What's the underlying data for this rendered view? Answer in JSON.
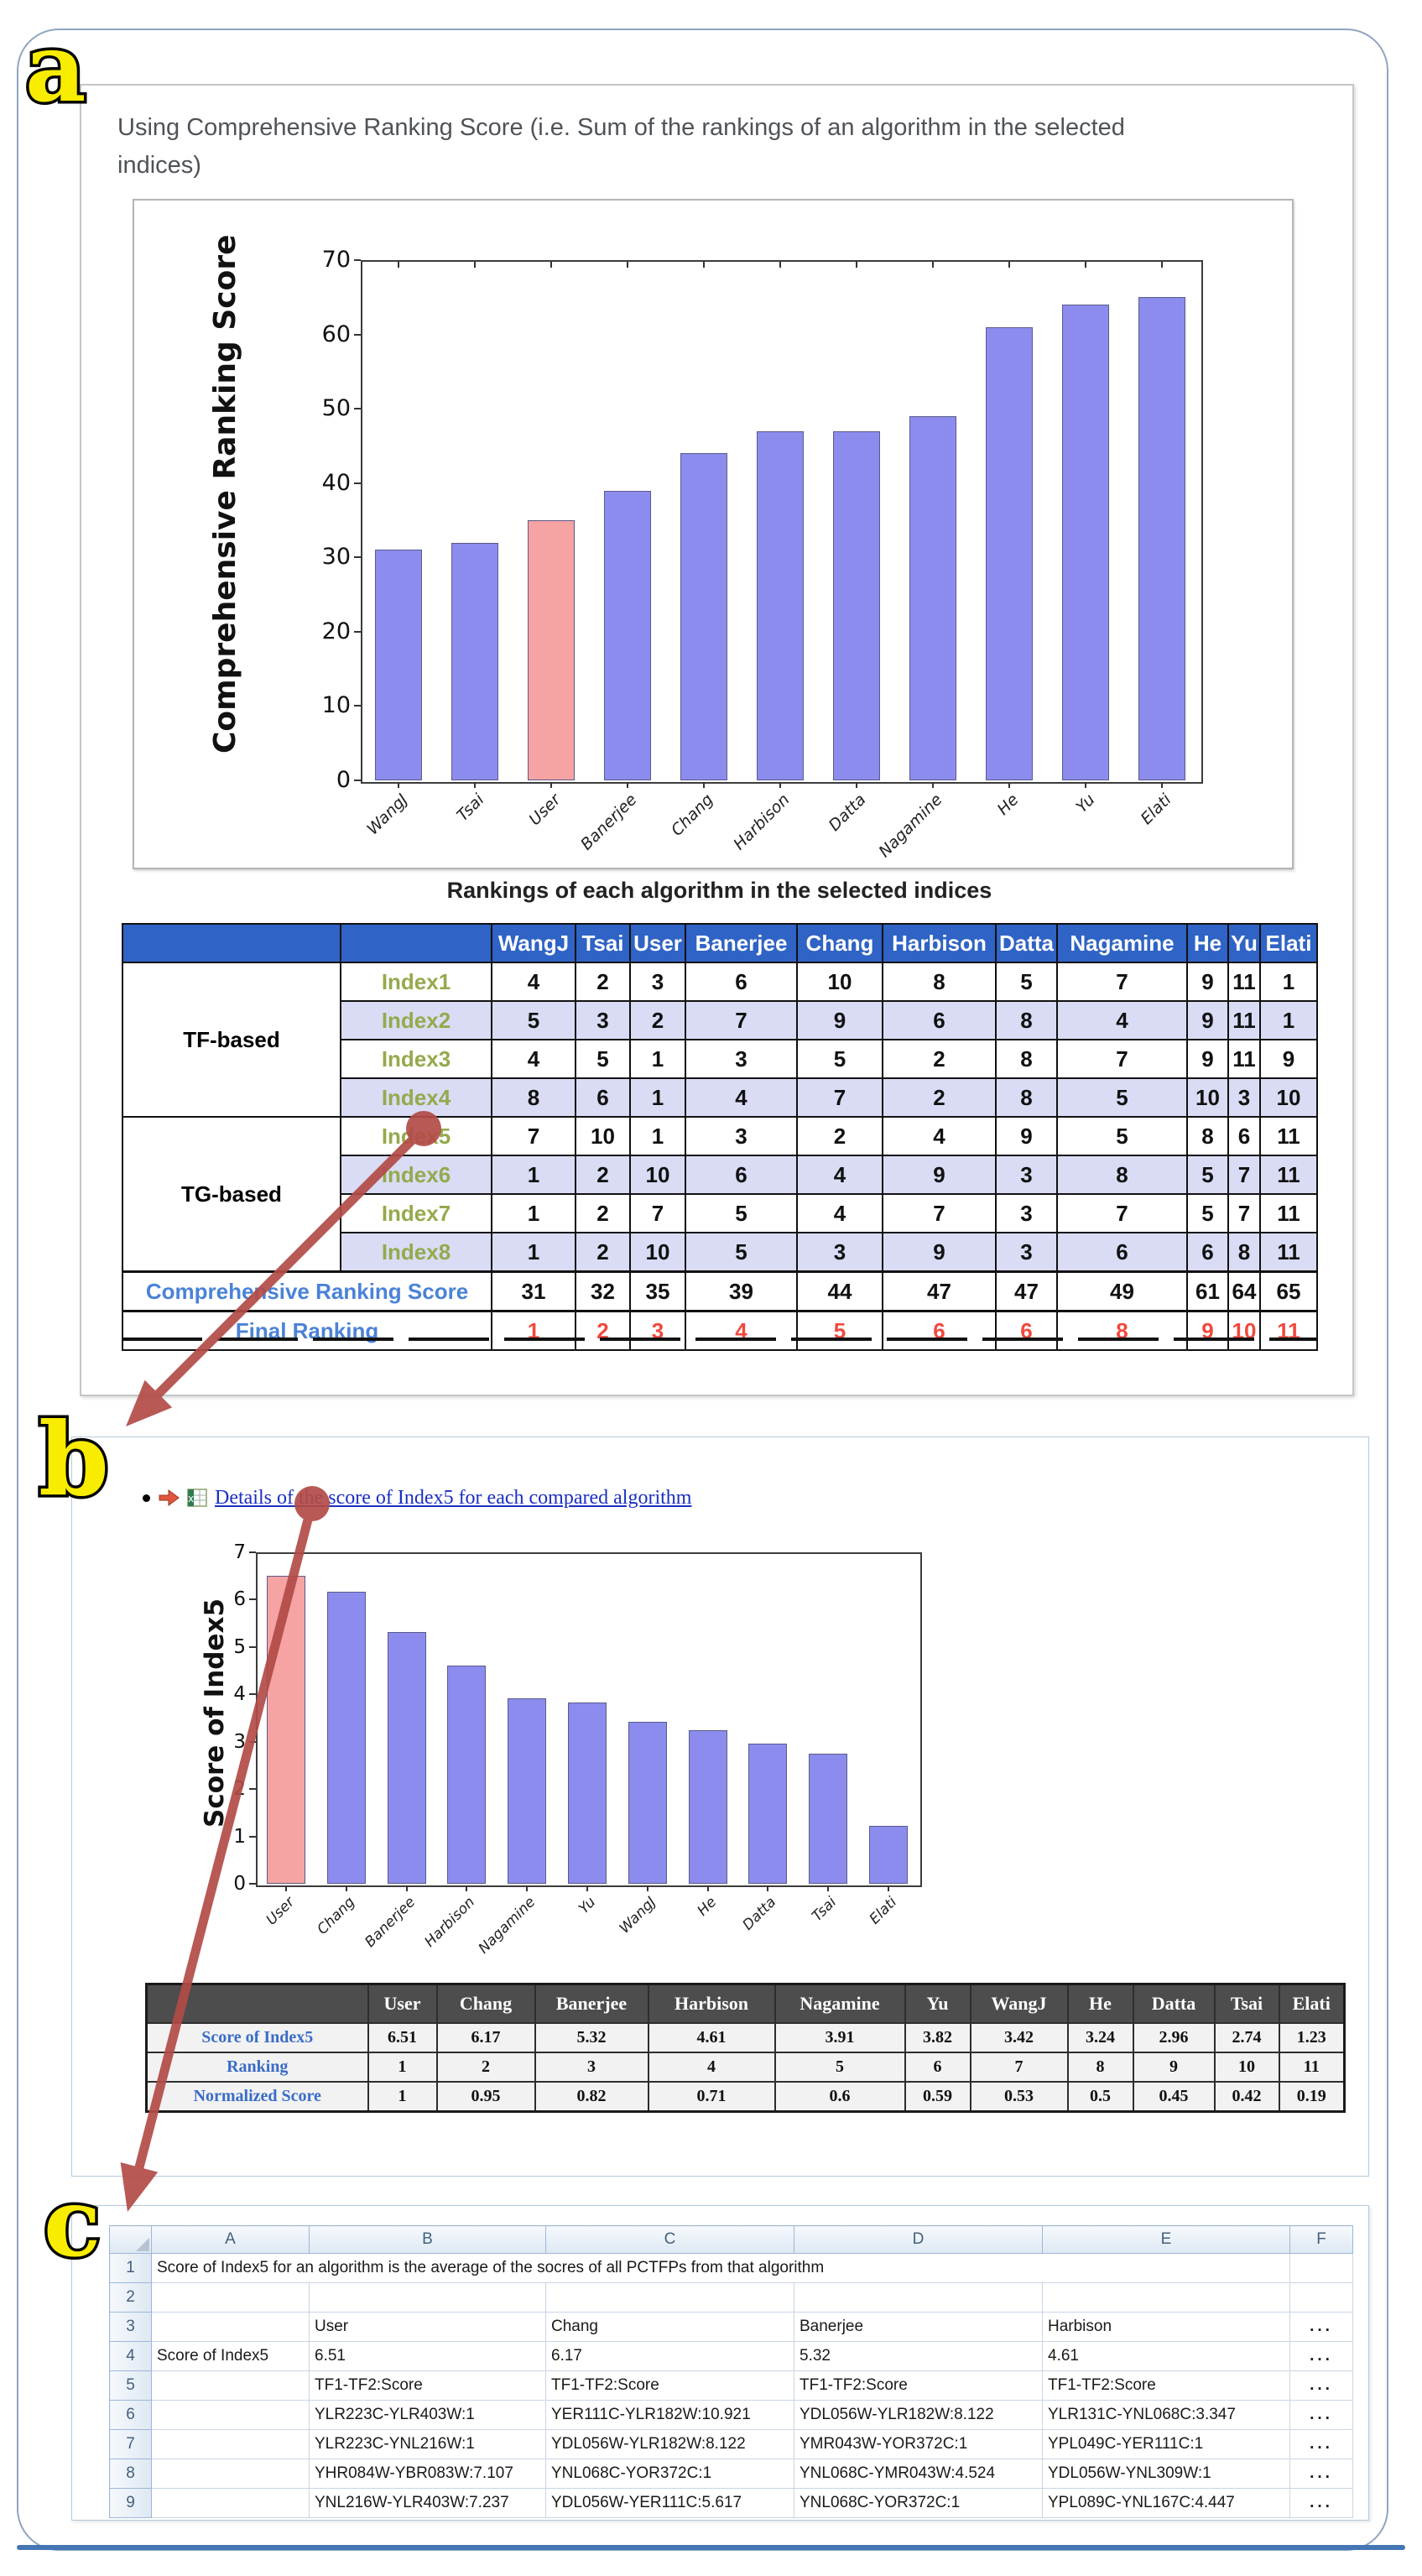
{
  "colors": {
    "bar_blue": "#8c8cee",
    "bar_pink": "#f5a3a3",
    "arrow_red": "#b24b47",
    "table_a_header_blue": "#2f63c5",
    "lavender": "#d9dcf4",
    "link_blue": "#1a2ec4",
    "summary_label_blue": "#4a82d8",
    "final_rank_red": "#f2483c",
    "index_green": "#94aa4c",
    "table_b_header_gray": "#4d4d4d"
  },
  "chart_data": [
    {
      "type": "bar",
      "title": "",
      "xlabel": "",
      "ylabel": "Comprehensive Ranking Score",
      "categories": [
        "WangJ",
        "Tsai",
        "User",
        "Banerjee",
        "Chang",
        "Harbison",
        "Datta",
        "Nagamine",
        "He",
        "Yu",
        "Elati"
      ],
      "values": [
        31,
        32,
        35,
        39,
        44,
        47,
        47,
        49,
        61,
        64,
        65
      ],
      "ylim": [
        0,
        70
      ],
      "ytick_step": 10,
      "grid": "off",
      "legend": "none",
      "highlight_category": "User"
    },
    {
      "type": "bar",
      "title": "",
      "xlabel": "",
      "ylabel": "Score of Index5",
      "categories": [
        "User",
        "Chang",
        "Banerjee",
        "Harbison",
        "Nagamine",
        "Yu",
        "WangJ",
        "He",
        "Datta",
        "Tsai",
        "Elati"
      ],
      "values": [
        6.51,
        6.17,
        5.32,
        4.61,
        3.91,
        3.82,
        3.42,
        3.24,
        2.96,
        2.74,
        1.23
      ],
      "ylim": [
        0,
        7
      ],
      "ytick_step": 1,
      "grid": "off",
      "legend": "none",
      "highlight_category": "User"
    }
  ],
  "panel_a": {
    "label": "a",
    "title": "Using Comprehensive Ranking Score (i.e. Sum of the rankings of an algorithm in the selected indices)",
    "table_title": "Rankings of each algorithm in the selected indices",
    "table": {
      "col_headers": [
        "WangJ",
        "Tsai",
        "User",
        "Banerjee",
        "Chang",
        "Harbison",
        "Datta",
        "Nagamine",
        "He",
        "Yu",
        "Elati"
      ],
      "group_labels": [
        "TF-based",
        "TG-based"
      ],
      "index_rows": [
        {
          "group": 0,
          "index": "Index1",
          "values": [
            4,
            2,
            3,
            6,
            10,
            8,
            5,
            7,
            9,
            11,
            1
          ]
        },
        {
          "group": 0,
          "index": "Index2",
          "values": [
            5,
            3,
            2,
            7,
            9,
            6,
            8,
            4,
            9,
            11,
            1
          ]
        },
        {
          "group": 0,
          "index": "Index3",
          "values": [
            4,
            5,
            1,
            3,
            5,
            2,
            8,
            7,
            9,
            11,
            9
          ]
        },
        {
          "group": 0,
          "index": "Index4",
          "values": [
            8,
            6,
            1,
            4,
            7,
            2,
            8,
            5,
            10,
            3,
            10
          ]
        },
        {
          "group": 1,
          "index": "Index5",
          "values": [
            7,
            10,
            1,
            3,
            2,
            4,
            9,
            5,
            8,
            6,
            11
          ]
        },
        {
          "group": 1,
          "index": "Index6",
          "values": [
            1,
            2,
            10,
            6,
            4,
            9,
            3,
            8,
            5,
            7,
            11
          ]
        },
        {
          "group": 1,
          "index": "Index7",
          "values": [
            1,
            2,
            7,
            5,
            4,
            7,
            3,
            7,
            5,
            7,
            11
          ]
        },
        {
          "group": 1,
          "index": "Index8",
          "values": [
            1,
            2,
            10,
            5,
            3,
            9,
            3,
            6,
            6,
            8,
            11
          ]
        }
      ],
      "summary_rows": [
        {
          "label": "Comprehensive Ranking Score",
          "values": [
            31,
            32,
            35,
            39,
            44,
            47,
            47,
            49,
            61,
            64,
            65
          ],
          "red": false
        },
        {
          "label": "Final Ranking",
          "values": [
            1,
            2,
            3,
            4,
            5,
            6,
            6,
            8,
            9,
            10,
            11
          ],
          "red": true
        }
      ]
    }
  },
  "panel_b": {
    "label": "b",
    "link_text": "Details of the score of Index5 for each compared algorithm",
    "table": {
      "col_headers": [
        "User",
        "Chang",
        "Banerjee",
        "Harbison",
        "Nagamine",
        "Yu",
        "WangJ",
        "He",
        "Datta",
        "Tsai",
        "Elati"
      ],
      "rows": [
        {
          "label": "Score of Index5",
          "values": [
            "6.51",
            "6.17",
            "5.32",
            "4.61",
            "3.91",
            "3.82",
            "3.42",
            "3.24",
            "2.96",
            "2.74",
            "1.23"
          ]
        },
        {
          "label": "Ranking",
          "values": [
            "1",
            "2",
            "3",
            "4",
            "5",
            "6",
            "7",
            "8",
            "9",
            "10",
            "11"
          ]
        },
        {
          "label": "Normalized Score",
          "values": [
            "1",
            "0.95",
            "0.82",
            "0.71",
            "0.6",
            "0.59",
            "0.53",
            "0.5",
            "0.45",
            "0.42",
            "0.19"
          ]
        }
      ]
    }
  },
  "panel_c": {
    "label": "c",
    "spreadsheet": {
      "col_headers": [
        "A",
        "B",
        "C",
        "D",
        "E",
        "F"
      ],
      "row_numbers": [
        "1",
        "2",
        "3",
        "4",
        "5",
        "6",
        "7",
        "8",
        "9"
      ],
      "note_row": "Score of Index5 for an algorithm is the average of the socres of all PCTFPs from that algorithm",
      "rows": [
        [
          "",
          "",
          "",
          "",
          "",
          ""
        ],
        [
          "",
          "User",
          "Chang",
          "Banerjee",
          "Harbison",
          "..."
        ],
        [
          "Score of Index5",
          "6.51",
          "6.17",
          "5.32",
          "4.61",
          "..."
        ],
        [
          "",
          "TF1-TF2:Score",
          "TF1-TF2:Score",
          "TF1-TF2:Score",
          "TF1-TF2:Score",
          "..."
        ],
        [
          "",
          "YLR223C-YLR403W:1",
          "YER111C-YLR182W:10.921",
          "YDL056W-YLR182W:8.122",
          "YLR131C-YNL068C:3.347",
          "..."
        ],
        [
          "",
          "YLR223C-YNL216W:1",
          "YDL056W-YLR182W:8.122",
          "YMR043W-YOR372C:1",
          "YPL049C-YER111C:1",
          "..."
        ],
        [
          "",
          "YHR084W-YBR083W:7.107",
          "YNL068C-YOR372C:1",
          "YNL068C-YMR043W:4.524",
          "YDL056W-YNL309W:1",
          "..."
        ],
        [
          "",
          "YNL216W-YLR403W:7.237",
          "YDL056W-YER111C:5.617",
          "YNL068C-YOR372C:1",
          "YPL089C-YNL167C:4.447",
          "..."
        ]
      ]
    }
  }
}
